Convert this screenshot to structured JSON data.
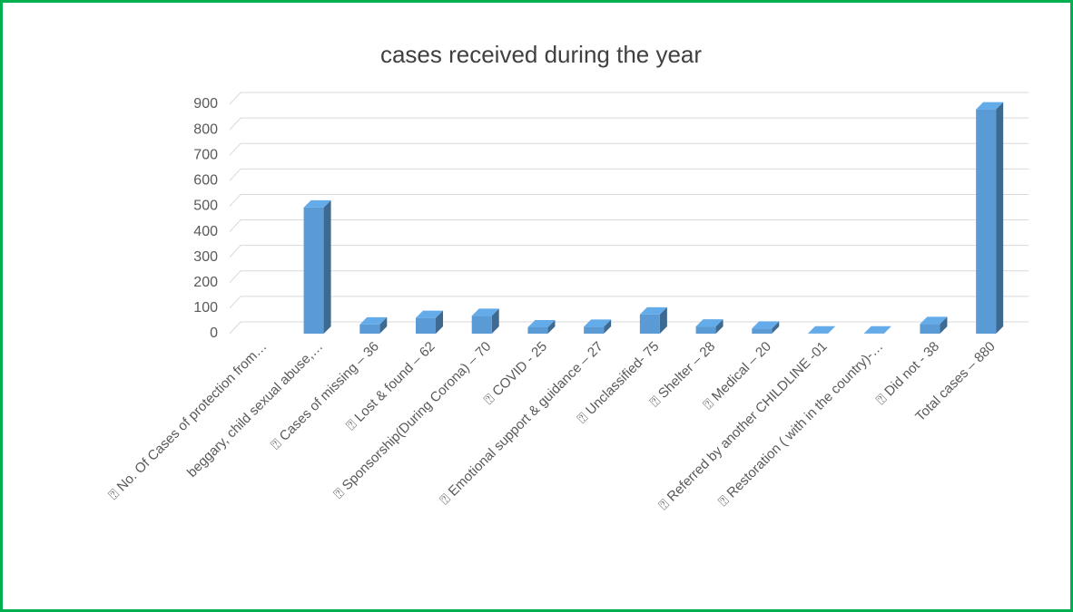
{
  "chart_data": {
    "type": "bar",
    "title": "cases received during the year",
    "categories": [
      "⍰ No. Of Cases of protection from…",
      "beggary, child sexual abuse,…",
      "⍰ Cases of missing – 36",
      "⍰ Lost & found – 62",
      "⍰ Sponsorship(During Corona) – 70",
      "⍰ COVID - 25",
      "⍰ Emotional support & guidance – 27",
      "⍰ Unclassified- 75",
      "⍰ Shelter – 28",
      "⍰ Medical – 20",
      "⍰ Referred by another CHILDLINE -01",
      "⍰ Restoration ( with in the country)-…",
      "⍰ Did not - 38",
      "Total cases – 880"
    ],
    "values": [
      null,
      495,
      36,
      62,
      70,
      25,
      27,
      75,
      28,
      20,
      1,
      1,
      38,
      880
    ],
    "color": "#5b9bd5",
    "ylim": [
      0,
      900
    ],
    "yticks": [
      0,
      100,
      200,
      300,
      400,
      500,
      600,
      700,
      800,
      900
    ],
    "grid": true
  }
}
